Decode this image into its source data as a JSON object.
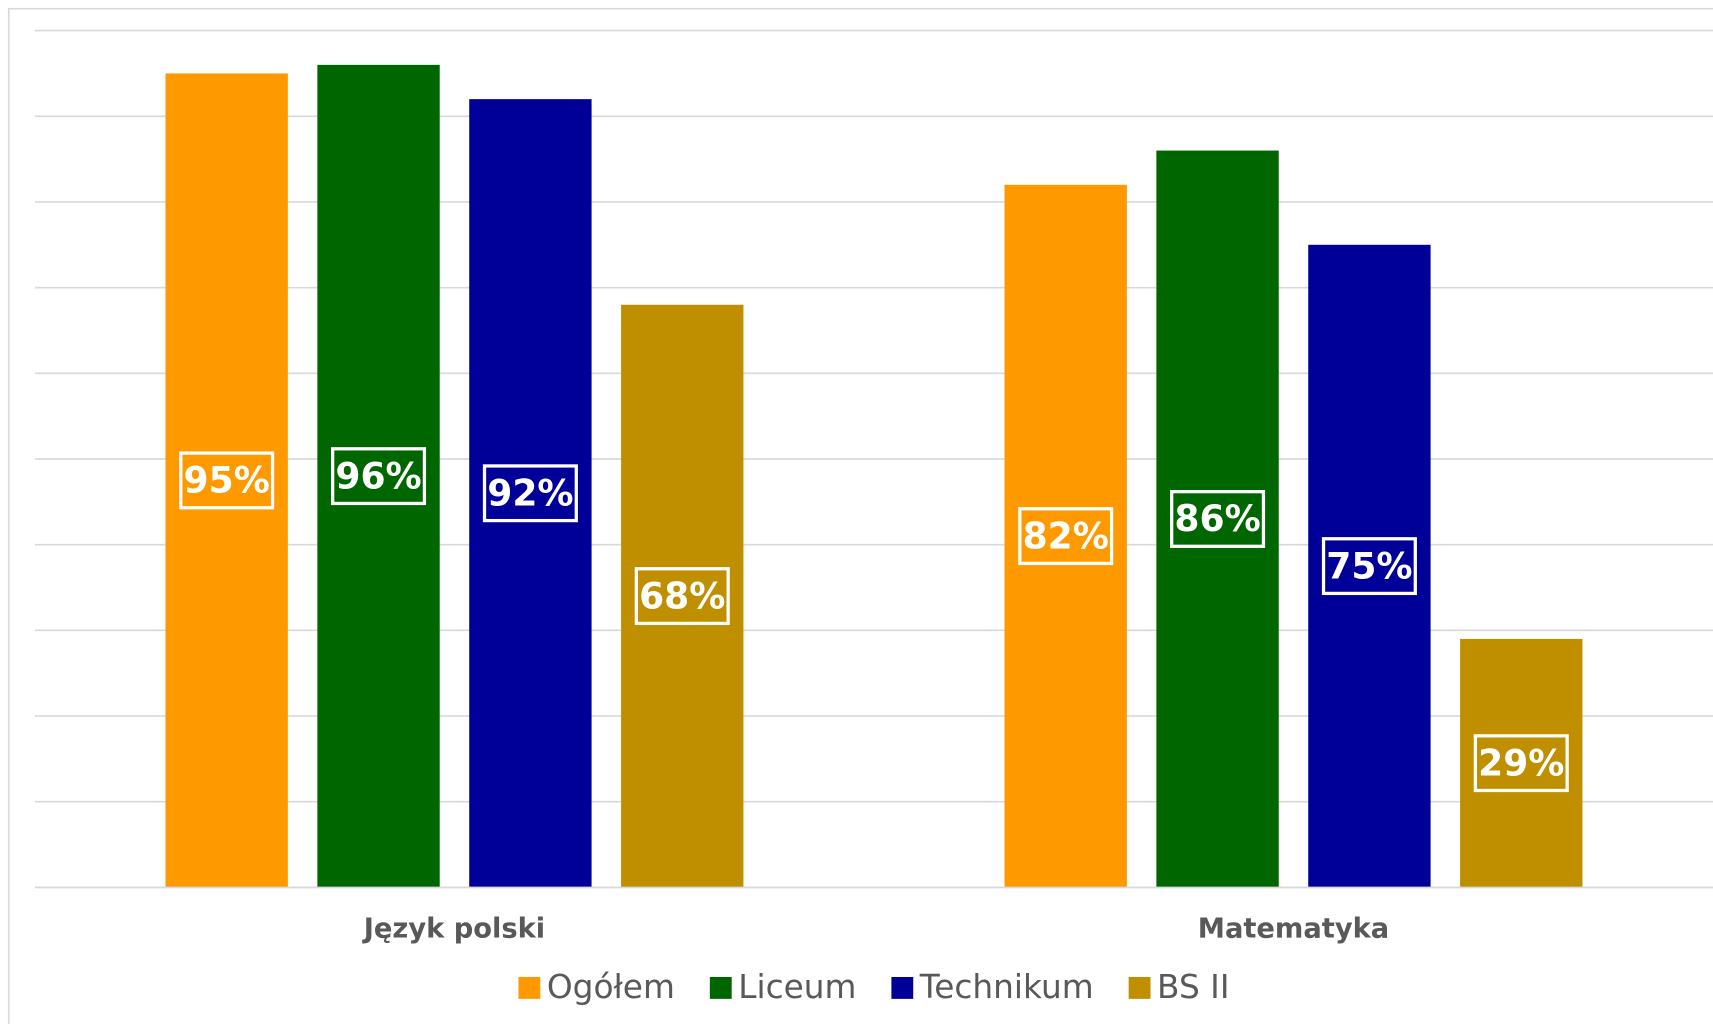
{
  "chart_data": {
    "type": "bar",
    "categories": [
      "Język polski",
      "Matematyka"
    ],
    "series": [
      {
        "name": "Ogółem",
        "color": "#ff9900",
        "values": [
          95,
          82
        ],
        "value_labels": [
          "95%",
          "82%"
        ]
      },
      {
        "name": "Liceum",
        "color": "#006600",
        "values": [
          96,
          86
        ],
        "value_labels": [
          "96%",
          "86%"
        ]
      },
      {
        "name": "Technikum",
        "color": "#000099",
        "values": [
          92,
          75
        ],
        "value_labels": [
          "92%",
          "75%"
        ]
      },
      {
        "name": "BS II",
        "color": "#bf8f00",
        "values": [
          68,
          29
        ],
        "value_labels": [
          "68%",
          "29%"
        ]
      }
    ],
    "ylim": [
      0,
      100
    ],
    "yticks": [
      0,
      10,
      20,
      30,
      40,
      50,
      60,
      70,
      80,
      90,
      100
    ],
    "grid": true,
    "legend": "bottom"
  }
}
